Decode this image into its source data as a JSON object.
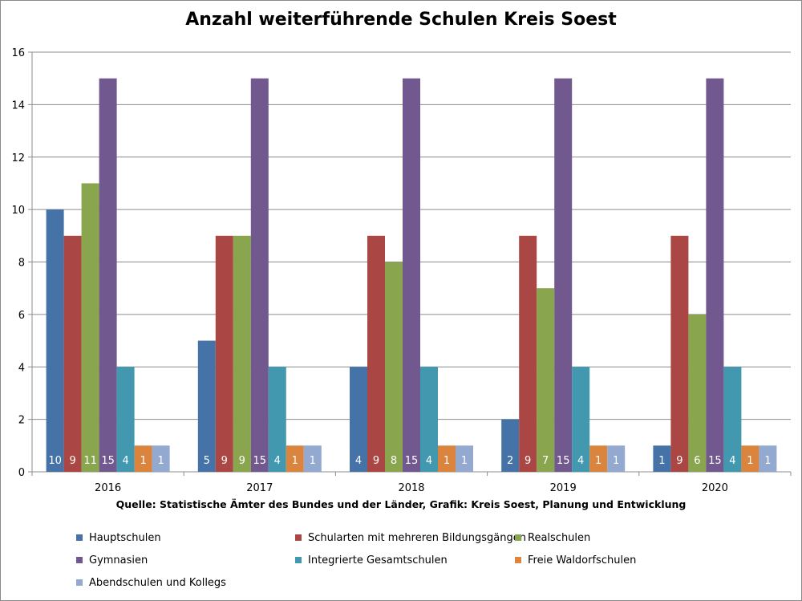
{
  "chart_data": {
    "type": "bar",
    "title": "Anzahl weiterführende Schulen Kreis Soest",
    "source": "Quelle: Statistische Ämter des Bundes und der Länder, Grafik: Kreis Soest, Planung und Entwicklung",
    "categories": [
      "2016",
      "2017",
      "2018",
      "2019",
      "2020"
    ],
    "ylim": [
      0,
      16
    ],
    "yticks": [
      0,
      2,
      4,
      6,
      8,
      10,
      12,
      14,
      16
    ],
    "grid": true,
    "legend_position": "bottom",
    "data_labels_position": "inside-base",
    "series": [
      {
        "name": "Hauptschulen",
        "color": "#4572A7",
        "values": [
          10,
          5,
          4,
          2,
          1
        ]
      },
      {
        "name": "Schularten mit mehreren Bildungsgängen",
        "color": "#AA4643",
        "values": [
          9,
          9,
          9,
          9,
          9
        ]
      },
      {
        "name": "Realschulen",
        "color": "#89A54E",
        "values": [
          11,
          9,
          8,
          7,
          6
        ]
      },
      {
        "name": "Gymnasien",
        "color": "#71588F",
        "values": [
          15,
          15,
          15,
          15,
          15
        ]
      },
      {
        "name": "Integrierte Gesamtschulen",
        "color": "#4198AF",
        "values": [
          4,
          4,
          4,
          4,
          4
        ]
      },
      {
        "name": "Freie Waldorfschulen",
        "color": "#DB843D",
        "values": [
          1,
          1,
          1,
          1,
          1
        ]
      },
      {
        "name": "Abendschulen und Kollegs",
        "color": "#93A9CF",
        "values": [
          1,
          1,
          1,
          1,
          1
        ]
      }
    ]
  }
}
